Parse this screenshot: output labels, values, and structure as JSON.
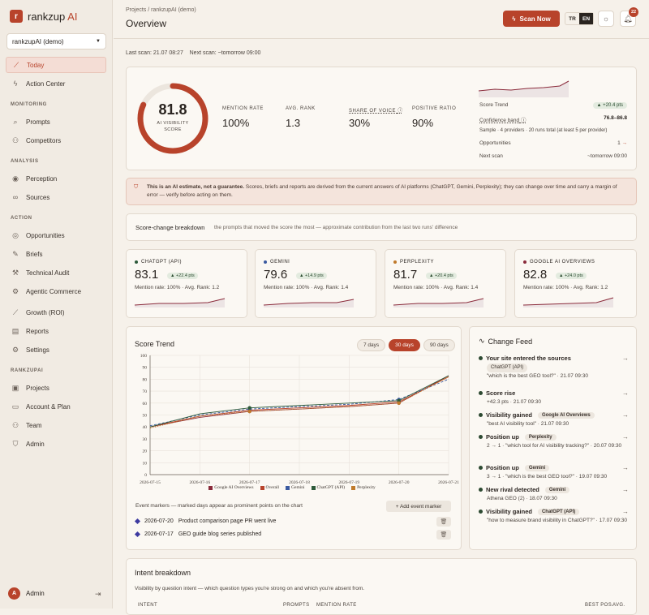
{
  "brand": {
    "name": "rankzup",
    "suffix": "AI",
    "logo_letter": "r"
  },
  "project_selector": {
    "value": "rankzupAI (demo)"
  },
  "nav": {
    "today": "Today",
    "action_center": "Action Center",
    "sec_monitoring": "MONITORING",
    "prompts": "Prompts",
    "competitors": "Competitors",
    "sec_analysis": "ANALYSIS",
    "perception": "Perception",
    "sources": "Sources",
    "sec_action": "ACTION",
    "opportunities": "Opportunities",
    "briefs": "Briefs",
    "technical_audit": "Technical Audit",
    "agentic_commerce": "Agentic Commerce",
    "growth": "Growth (ROI)",
    "reports": "Reports",
    "settings": "Settings",
    "sec_rankzupai": "RANKZUPAI",
    "projects": "Projects",
    "account": "Account & Plan",
    "team": "Team",
    "admin": "Admin"
  },
  "user": {
    "initial": "A",
    "name": "Admin"
  },
  "header": {
    "breadcrumb": "Projects / rankzupAI (demo)",
    "title": "Overview",
    "scan_button": "Scan Now",
    "lang_tr": "TR",
    "lang_en": "EN",
    "notif_count": "22"
  },
  "scan_info": {
    "last": "Last scan: 21.07 08:27",
    "next": "Next scan: ~tomorrow 09:00"
  },
  "visibility": {
    "score": "81.8",
    "score_value": 0.818,
    "label_1": "AI VISIBILITY",
    "label_2": "SCORE"
  },
  "metrics": [
    {
      "label": "MENTION RATE",
      "value": "100%"
    },
    {
      "label": "AVG. RANK",
      "value": "1.3"
    },
    {
      "label": "SHARE OF VOICE",
      "value": "30%"
    },
    {
      "label": "POSITIVE RATIO",
      "value": "90%"
    }
  ],
  "summary": {
    "score_trend_label": "Score Trend",
    "score_trend_value": "▲ +20.4 pts",
    "confidence_label": "Confidence band",
    "confidence_value": "76.8–86.8",
    "sample_text": "Sample · 4 providers · 20 runs total (at least 5 per provider)",
    "opportunities_label": "Opportunities",
    "opportunities_value": "1",
    "next_scan_label": "Next scan",
    "next_scan_value": "~tomorrow 09:00"
  },
  "warning": {
    "bold": "This is an AI estimate, not a guarantee.",
    "text": " Scores, briefs and reports are derived from the current answers of AI platforms (ChatGPT, Gemini, Perplexity); they can change over time and carry a margin of error — verify before acting on them."
  },
  "breakdown": {
    "title": "Score-change breakdown",
    "subtitle": "the prompts that moved the score the most — approximate contribution from the last two runs' difference"
  },
  "providers": [
    {
      "name": "CHATGPT (API)",
      "score": "83.1",
      "delta": "▲ +22.4 pts",
      "meta": "Mention rate: 100% · Avg. Rank: 1.2",
      "color": "#2d5a3a"
    },
    {
      "name": "GEMINI",
      "score": "79.6",
      "delta": "▲ +14.9 pts",
      "meta": "Mention rate: 100% · Avg. Rank: 1.4",
      "color": "#3a5aa0"
    },
    {
      "name": "PERPLEXITY",
      "score": "81.7",
      "delta": "▲ +20.4 pts",
      "meta": "Mention rate: 100% · Avg. Rank: 1.4",
      "color": "#c07a2a"
    },
    {
      "name": "GOOGLE AI OVERVIEWS",
      "score": "82.8",
      "delta": "▲ +24.0 pts",
      "meta": "Mention rate: 100% · Avg. Rank: 1.2",
      "color": "#8a2a3a"
    }
  ],
  "trend": {
    "title": "Score Trend",
    "tab_7": "7 days",
    "tab_30": "30 days",
    "tab_90": "90 days"
  },
  "chart_data": {
    "type": "line",
    "title": "Score Trend",
    "x": [
      "2026-07-15",
      "2026-07-16",
      "2026-07-17",
      "2026-07-18",
      "2026-07-19",
      "2026-07-20",
      "2026-07-21"
    ],
    "ylim": [
      0,
      100
    ],
    "yticks": [
      0,
      10,
      20,
      30,
      40,
      50,
      60,
      70,
      80,
      90,
      100
    ],
    "series": [
      {
        "name": "Google AI Overviews",
        "color": "#8a2a3a",
        "values": [
          40,
          48,
          53,
          55,
          57,
          60,
          83
        ]
      },
      {
        "name": "Overall",
        "color": "#b8432b",
        "values": [
          40,
          49,
          54,
          56,
          58,
          61,
          82
        ]
      },
      {
        "name": "Gemini",
        "color": "#3a5aa0",
        "values": [
          41,
          50,
          55,
          57,
          59,
          63,
          80
        ]
      },
      {
        "name": "ChatGPT (API)",
        "color": "#2d5a3a",
        "values": [
          40,
          51,
          56,
          58,
          60,
          62,
          83
        ]
      },
      {
        "name": "Perplexity",
        "color": "#c07a2a",
        "values": [
          39,
          49,
          53,
          55,
          57,
          60,
          82
        ]
      }
    ],
    "legend": "bottom"
  },
  "events": {
    "caption": "Event markers — marked days appear as prominent points on the chart",
    "add_button": "+ Add event marker",
    "items": [
      {
        "date": "2026-07-20",
        "text": "Product comparison page PR went live"
      },
      {
        "date": "2026-07-17",
        "text": "GEO guide blog series published"
      }
    ]
  },
  "feed": {
    "title": "Change Feed",
    "items": [
      {
        "title": "Your site entered the sources",
        "tag": "ChatGPT (API)",
        "sub": "\"which is the best GEO tool?\" · 21.07 09:30"
      },
      {
        "title": "Score rise",
        "tag": "",
        "sub": "+42.3 pts · 21.07 09:30"
      },
      {
        "title": "Visibility gained",
        "tag": "Google AI Overviews",
        "sub": "\"best AI visibility tool\" · 21.07 09:30"
      },
      {
        "title": "Position up",
        "tag": "Perplexity",
        "sub": "2 → 1 · \"which tool for AI visibility tracking?\" · 20.07 09:30"
      },
      {
        "title": "Position up",
        "tag": "Gemini",
        "sub": "3 → 1 · \"which is the best GEO tool?\" · 19.07 09:30"
      },
      {
        "title": "New rival detected",
        "tag": "Gemini",
        "sub": "Athena GEO (2) · 18.07 09:30"
      },
      {
        "title": "Visibility gained",
        "tag": "ChatGPT (API)",
        "sub": "\"how to measure brand visibility in ChatGPT?\" · 17.07 09:30"
      }
    ]
  },
  "intent": {
    "title": "Intent breakdown",
    "subtitle": "Visibility by question intent — which question types you're strong on and which you're absent from.",
    "col_intent": "INTENT",
    "col_prompts": "PROMPTS",
    "col_mention": "MENTION RATE",
    "col_best": "BEST POS.",
    "col_avg": "AVG."
  }
}
